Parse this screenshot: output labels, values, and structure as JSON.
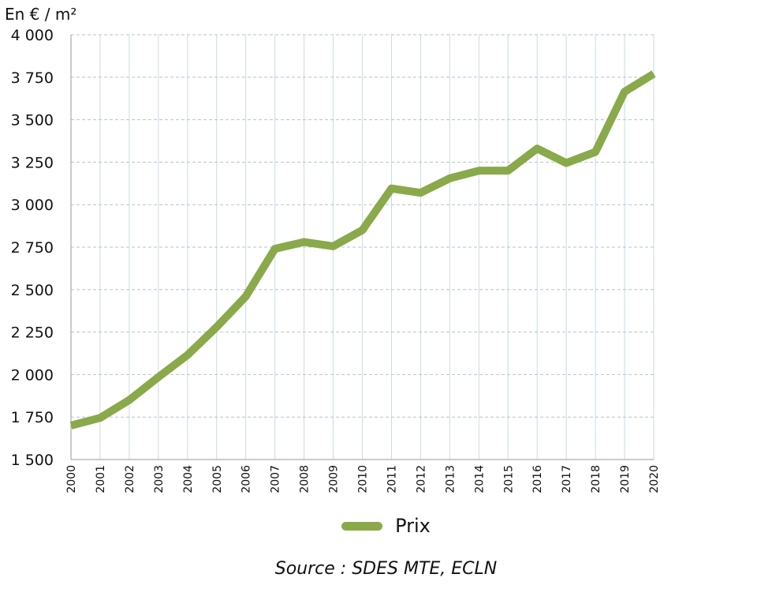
{
  "chart_data": {
    "type": "line",
    "title": "",
    "ylabel": "En € / m²",
    "xlabel": "",
    "ylim": [
      1500,
      4000
    ],
    "yticks": [
      1500,
      1750,
      2000,
      2250,
      2500,
      2750,
      3000,
      3250,
      3500,
      3750,
      4000
    ],
    "ytick_labels": [
      "1 500",
      "1 750",
      "2 000",
      "2 250",
      "2 500",
      "2 750",
      "3 000",
      "3 250",
      "3 500",
      "3 750",
      "4 000"
    ],
    "categories": [
      "2000",
      "2001",
      "2002",
      "2003",
      "2004",
      "2005",
      "2006",
      "2007",
      "2008",
      "2009",
      "2010",
      "2011",
      "2012",
      "2013",
      "2014",
      "2015",
      "2016",
      "2017",
      "2018",
      "2019",
      "2020"
    ],
    "series": [
      {
        "name": "Prix",
        "color": "#8aa94b",
        "values": [
          1700,
          1745,
          1850,
          1985,
          2115,
          2280,
          2460,
          2740,
          2780,
          2755,
          2850,
          3095,
          3070,
          3155,
          3200,
          3200,
          3330,
          3245,
          3310,
          3665,
          3770
        ]
      }
    ],
    "grid": true,
    "legend_position": "bottom"
  },
  "source": "Source : SDES MTE, ECLN"
}
